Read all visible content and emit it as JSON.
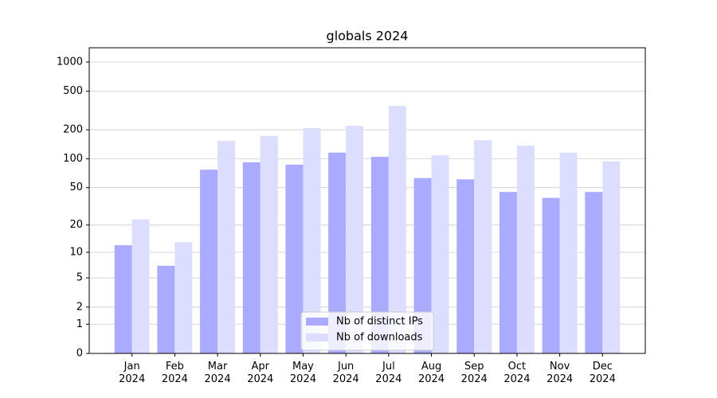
{
  "chart_data": {
    "type": "bar",
    "title": "globals 2024",
    "categories": [
      "Jan\n2024",
      "Feb\n2024",
      "Mar\n2024",
      "Apr\n2024",
      "May\n2024",
      "Jun\n2024",
      "Jul\n2024",
      "Aug\n2024",
      "Sep\n2024",
      "Oct\n2024",
      "Nov\n2024",
      "Dec\n2024"
    ],
    "series": [
      {
        "name": "Nb of distinct IPs",
        "color": "#aaaaff",
        "values": [
          12,
          7,
          77,
          92,
          87,
          116,
          105,
          63,
          61,
          45,
          39,
          45
        ]
      },
      {
        "name": "Nb of downloads",
        "color": "#ddddff",
        "values": [
          23,
          13,
          154,
          172,
          208,
          220,
          353,
          109,
          156,
          137,
          116,
          94
        ]
      }
    ],
    "yscale": "log1p",
    "ylim": [
      0,
      1405
    ],
    "yticks": [
      0,
      1,
      2,
      5,
      10,
      20,
      50,
      100,
      200,
      500,
      1000
    ],
    "grid": true,
    "legend": "lower center"
  }
}
